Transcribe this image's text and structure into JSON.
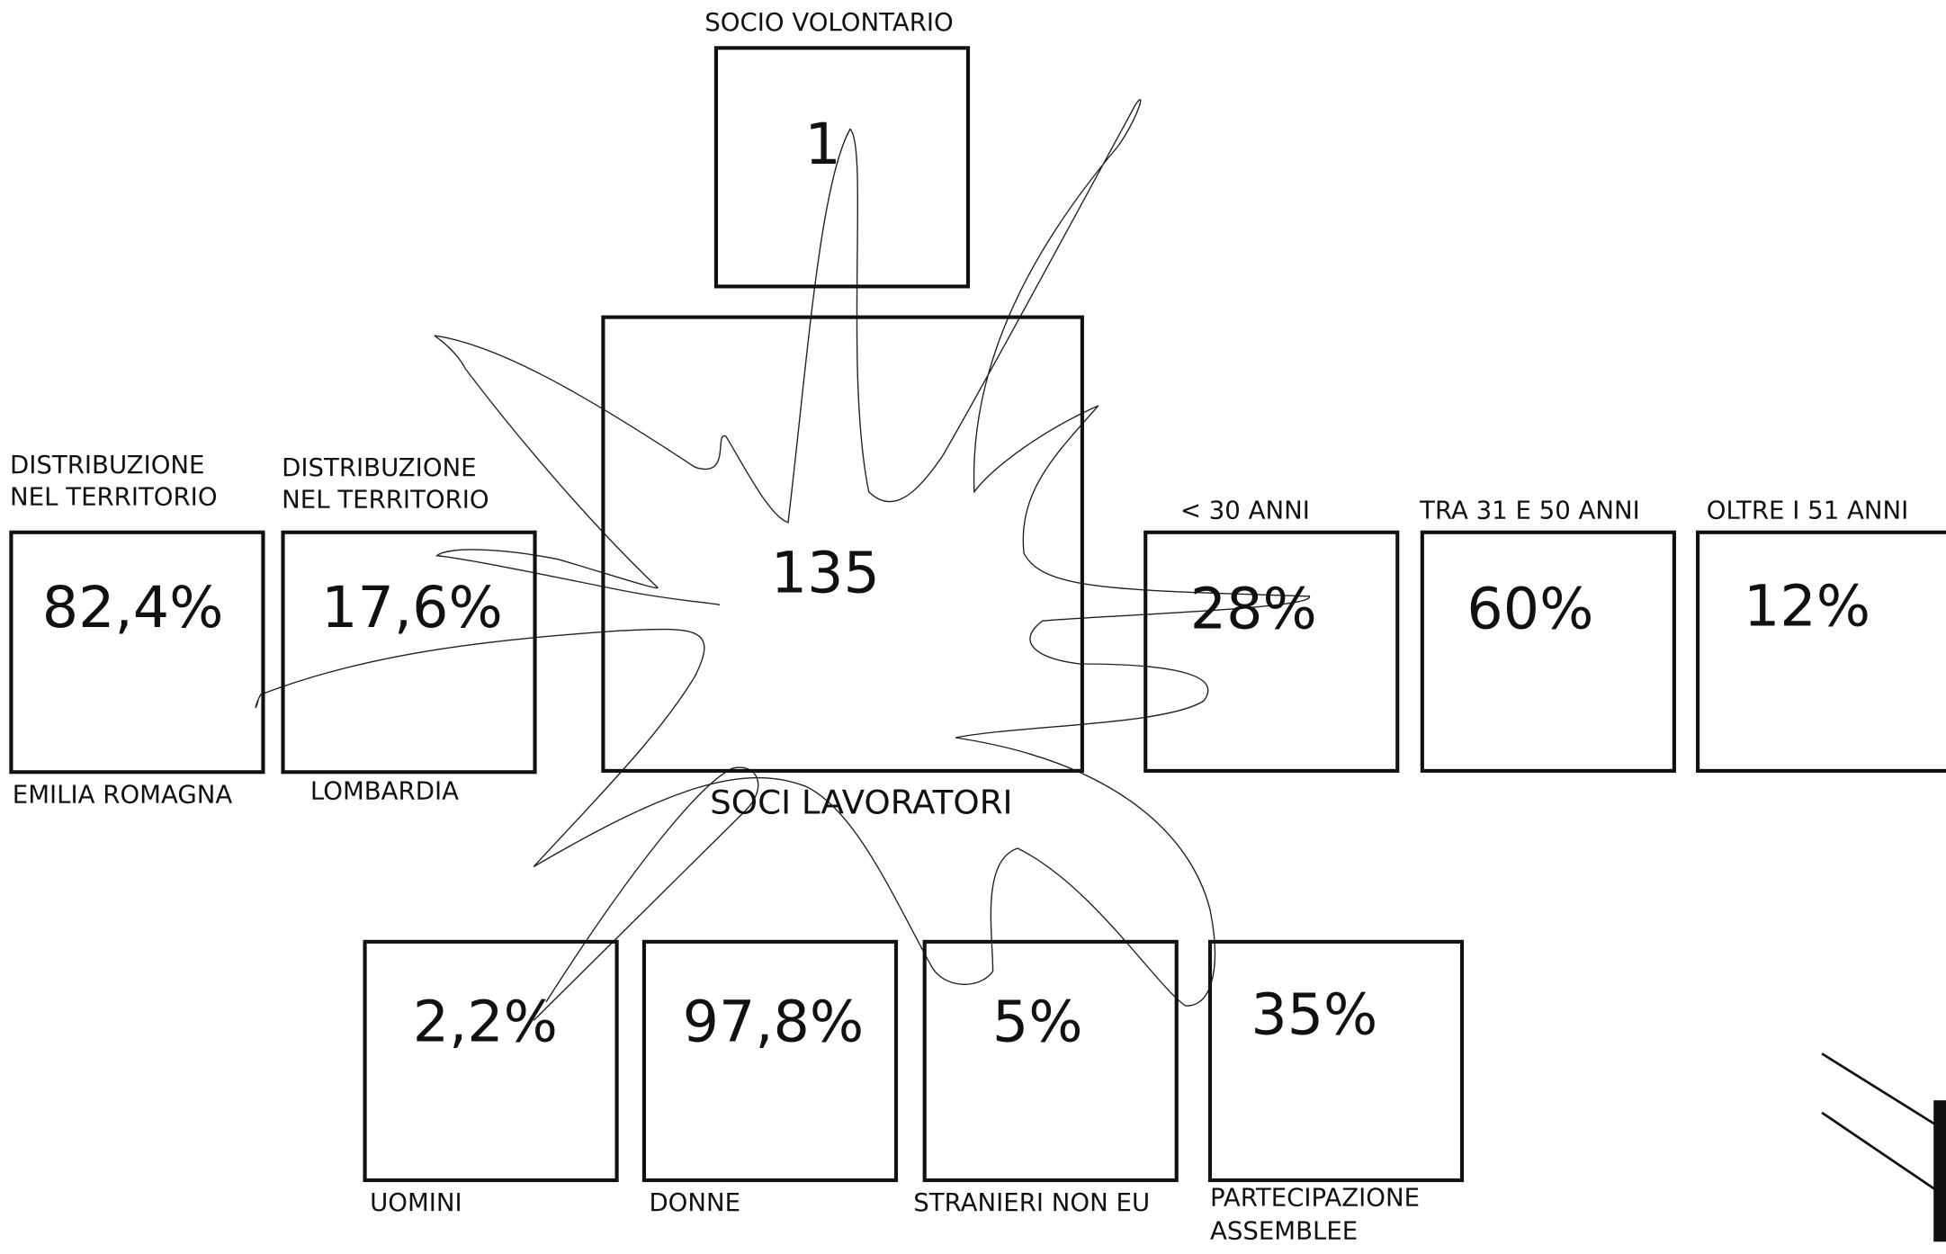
{
  "top": {
    "label": "SOCIO VOLONTARIO",
    "value": "1"
  },
  "center": {
    "value": "135",
    "label": "SOCI LAVORATORI"
  },
  "territory": [
    {
      "header": [
        "DISTRIBUZIONE",
        "NEL TERRITORIO"
      ],
      "value": "82,4%",
      "label": "EMILIA ROMAGNA"
    },
    {
      "header": [
        "DISTRIBUZIONE",
        "NEL TERRITORIO"
      ],
      "value": "17,6%",
      "label": "LOMBARDIA"
    }
  ],
  "age": [
    {
      "header": "< 30 ANNI",
      "value": "28%"
    },
    {
      "header": "TRA 31 E 50 ANNI",
      "value": "60%"
    },
    {
      "header": "OLTRE I 51 ANNI",
      "value": "12%"
    }
  ],
  "bottom": [
    {
      "value": "2,2%",
      "label": [
        "UOMINI"
      ]
    },
    {
      "value": "97,8%",
      "label": [
        "DONNE"
      ]
    },
    {
      "value": "5%",
      "label": [
        "STRANIERI NON EU"
      ]
    },
    {
      "value": "35%",
      "label": [
        "PARTECIPAZIONE",
        "ASSEMBLEE"
      ]
    }
  ]
}
